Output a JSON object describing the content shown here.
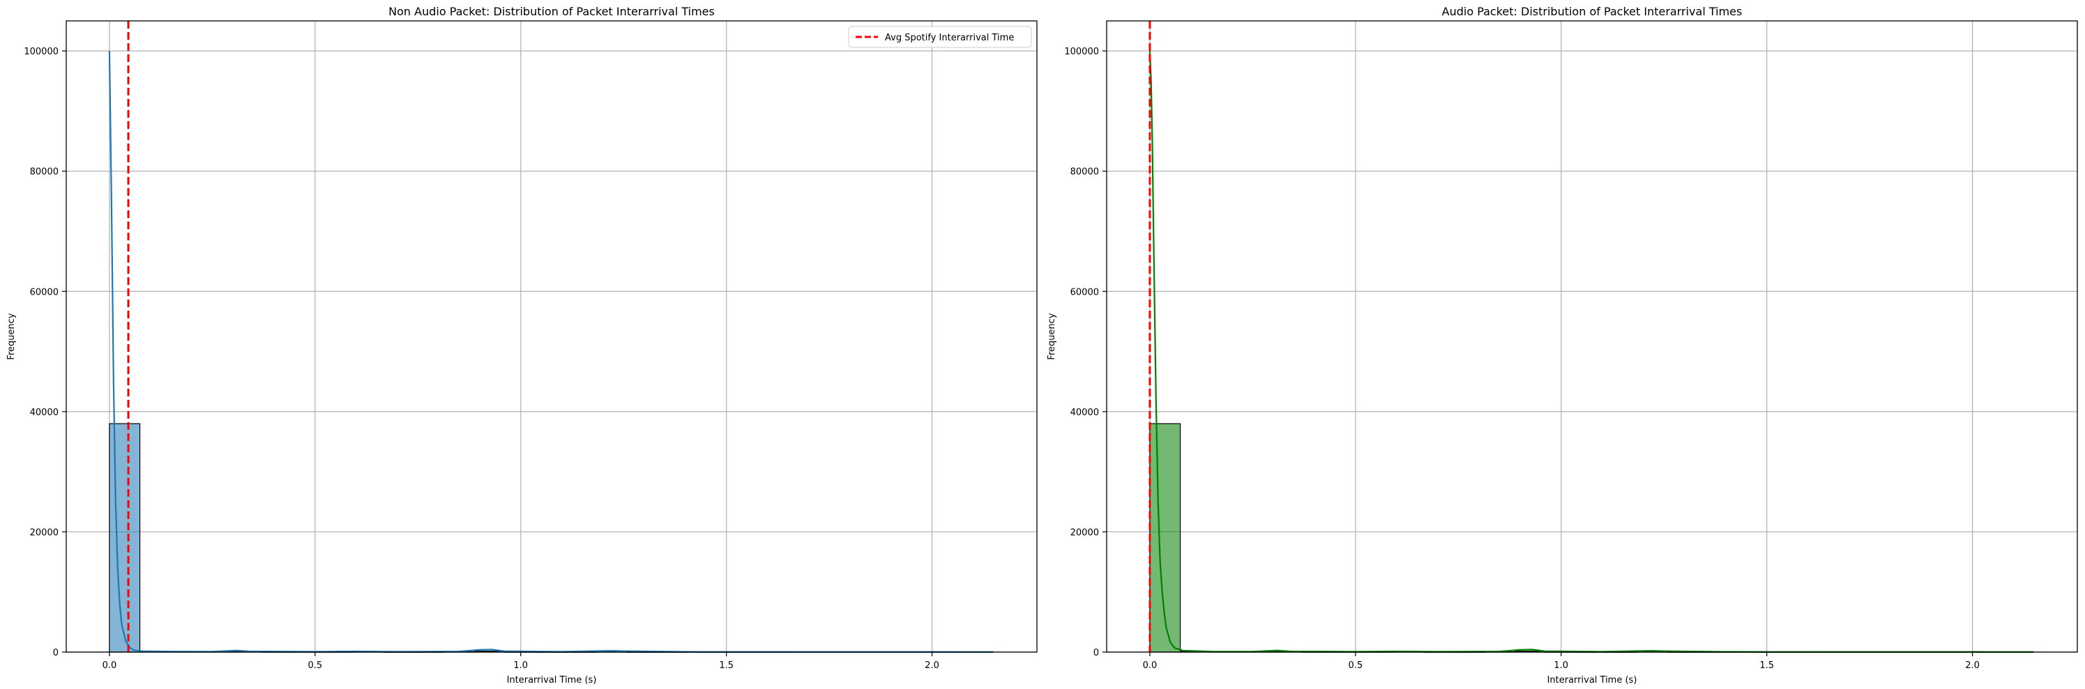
{
  "colors": {
    "grid": "#b0b0b0",
    "axis": "#000000",
    "bar_edge": "#000000",
    "vline": "#ff0000",
    "blue": "#1f77b4",
    "green": "#008000"
  },
  "chart_data": [
    {
      "type": "bar",
      "title": "Non Audio Packet: Distribution of Packet Interarrival Times",
      "xlabel": "Interarrival Time (s)",
      "ylabel": "Frequency",
      "xlim": [
        -0.105,
        2.255
      ],
      "ylim": [
        0,
        105000
      ],
      "xticks": [
        0.0,
        0.5,
        1.0,
        1.5,
        2.0
      ],
      "xtick_labels": [
        "0.0",
        "0.5",
        "1.0",
        "1.5",
        "2.0"
      ],
      "yticks": [
        0,
        20000,
        40000,
        60000,
        80000,
        100000
      ],
      "ytick_labels": [
        "0",
        "20000",
        "40000",
        "60000",
        "80000",
        "100000"
      ],
      "grid": true,
      "bar_color": "#1f77b4",
      "bins": [
        {
          "x0": 0.0,
          "x1": 0.074,
          "value": 38000
        },
        {
          "x0": 0.074,
          "x1": 0.148,
          "value": 130
        },
        {
          "x0": 0.148,
          "x1": 0.222,
          "value": 60
        },
        {
          "x0": 0.222,
          "x1": 0.296,
          "value": 60
        },
        {
          "x0": 0.296,
          "x1": 0.37,
          "value": 120
        },
        {
          "x0": 0.37,
          "x1": 0.444,
          "value": 40
        },
        {
          "x0": 0.444,
          "x1": 0.518,
          "value": 40
        },
        {
          "x0": 0.518,
          "x1": 0.592,
          "value": 40
        },
        {
          "x0": 0.592,
          "x1": 0.666,
          "value": 60
        },
        {
          "x0": 0.666,
          "x1": 0.74,
          "value": 30
        },
        {
          "x0": 0.74,
          "x1": 0.814,
          "value": 30
        },
        {
          "x0": 0.814,
          "x1": 0.888,
          "value": 60
        },
        {
          "x0": 0.888,
          "x1": 0.962,
          "value": 160
        },
        {
          "x0": 0.962,
          "x1": 1.036,
          "value": 40
        },
        {
          "x0": 1.036,
          "x1": 1.11,
          "value": 30
        },
        {
          "x0": 1.11,
          "x1": 1.184,
          "value": 30
        },
        {
          "x0": 1.184,
          "x1": 1.258,
          "value": 60
        },
        {
          "x0": 1.258,
          "x1": 1.332,
          "value": 30
        },
        {
          "x0": 1.332,
          "x1": 1.406,
          "value": 30
        },
        {
          "x0": 1.406,
          "x1": 1.48,
          "value": 30
        },
        {
          "x0": 1.48,
          "x1": 1.554,
          "value": 20
        },
        {
          "x0": 1.554,
          "x1": 1.628,
          "value": 20
        },
        {
          "x0": 1.628,
          "x1": 1.702,
          "value": 20
        },
        {
          "x0": 1.702,
          "x1": 1.776,
          "value": 20
        },
        {
          "x0": 1.776,
          "x1": 1.85,
          "value": 20
        },
        {
          "x0": 1.85,
          "x1": 1.924,
          "value": 20
        },
        {
          "x0": 1.924,
          "x1": 1.998,
          "value": 20
        },
        {
          "x0": 1.998,
          "x1": 2.072,
          "value": 20
        },
        {
          "x0": 2.072,
          "x1": 2.146,
          "value": 20
        }
      ],
      "kde": {
        "color": "#1f77b4",
        "points": [
          [
            0.0,
            100000
          ],
          [
            0.005,
            75000
          ],
          [
            0.01,
            45000
          ],
          [
            0.015,
            25000
          ],
          [
            0.02,
            14000
          ],
          [
            0.025,
            8000
          ],
          [
            0.03,
            4500
          ],
          [
            0.04,
            1800
          ],
          [
            0.05,
            700
          ],
          [
            0.06,
            300
          ],
          [
            0.08,
            150
          ],
          [
            0.15,
            90
          ],
          [
            0.25,
            70
          ],
          [
            0.29,
            200
          ],
          [
            0.31,
            260
          ],
          [
            0.34,
            120
          ],
          [
            0.5,
            60
          ],
          [
            0.6,
            120
          ],
          [
            0.7,
            60
          ],
          [
            0.85,
            100
          ],
          [
            0.9,
            380
          ],
          [
            0.93,
            420
          ],
          [
            0.96,
            150
          ],
          [
            1.1,
            60
          ],
          [
            1.22,
            220
          ],
          [
            1.25,
            160
          ],
          [
            1.4,
            40
          ],
          [
            1.7,
            30
          ],
          [
            2.0,
            25
          ],
          [
            2.15,
            20
          ]
        ]
      },
      "vline": {
        "x": 0.046,
        "label": "Avg Spotify Interarrival Time"
      },
      "legend": {
        "position": "upper right"
      }
    },
    {
      "type": "bar",
      "title": "Audio Packet: Distribution of Packet Interarrival Times",
      "xlabel": "Interarrival Time (s)",
      "ylabel": "Frequency",
      "xlim": [
        -0.105,
        2.255
      ],
      "ylim": [
        0,
        105000
      ],
      "xticks": [
        0.0,
        0.5,
        1.0,
        1.5,
        2.0
      ],
      "xtick_labels": [
        "0.0",
        "0.5",
        "1.0",
        "1.5",
        "2.0"
      ],
      "yticks": [
        0,
        20000,
        40000,
        60000,
        80000,
        100000
      ],
      "ytick_labels": [
        "0",
        "20000",
        "40000",
        "60000",
        "80000",
        "100000"
      ],
      "grid": true,
      "bar_color": "#008000",
      "bins": [
        {
          "x0": 0.0,
          "x1": 0.074,
          "value": 38000
        },
        {
          "x0": 0.074,
          "x1": 0.148,
          "value": 130
        },
        {
          "x0": 0.148,
          "x1": 0.222,
          "value": 60
        },
        {
          "x0": 0.222,
          "x1": 0.296,
          "value": 60
        },
        {
          "x0": 0.296,
          "x1": 0.37,
          "value": 120
        },
        {
          "x0": 0.37,
          "x1": 0.444,
          "value": 40
        },
        {
          "x0": 0.444,
          "x1": 0.518,
          "value": 40
        },
        {
          "x0": 0.518,
          "x1": 0.592,
          "value": 40
        },
        {
          "x0": 0.592,
          "x1": 0.666,
          "value": 60
        },
        {
          "x0": 0.666,
          "x1": 0.74,
          "value": 30
        },
        {
          "x0": 0.74,
          "x1": 0.814,
          "value": 30
        },
        {
          "x0": 0.814,
          "x1": 0.888,
          "value": 60
        },
        {
          "x0": 0.888,
          "x1": 0.962,
          "value": 160
        },
        {
          "x0": 0.962,
          "x1": 1.036,
          "value": 40
        },
        {
          "x0": 1.036,
          "x1": 1.11,
          "value": 30
        },
        {
          "x0": 1.11,
          "x1": 1.184,
          "value": 30
        },
        {
          "x0": 1.184,
          "x1": 1.258,
          "value": 60
        },
        {
          "x0": 1.258,
          "x1": 1.332,
          "value": 30
        },
        {
          "x0": 1.332,
          "x1": 1.406,
          "value": 30
        },
        {
          "x0": 1.406,
          "x1": 1.48,
          "value": 30
        },
        {
          "x0": 1.48,
          "x1": 1.554,
          "value": 20
        },
        {
          "x0": 1.554,
          "x1": 1.628,
          "value": 20
        },
        {
          "x0": 1.628,
          "x1": 1.702,
          "value": 20
        },
        {
          "x0": 1.702,
          "x1": 1.776,
          "value": 20
        },
        {
          "x0": 1.776,
          "x1": 1.85,
          "value": 20
        },
        {
          "x0": 1.85,
          "x1": 1.924,
          "value": 20
        },
        {
          "x0": 1.924,
          "x1": 1.998,
          "value": 20
        },
        {
          "x0": 1.998,
          "x1": 2.072,
          "value": 20
        },
        {
          "x0": 2.072,
          "x1": 2.146,
          "value": 20
        }
      ],
      "kde": {
        "color": "#008000",
        "points": [
          [
            0.0,
            100000
          ],
          [
            0.003,
            95000
          ],
          [
            0.006,
            85000
          ],
          [
            0.01,
            65000
          ],
          [
            0.015,
            42000
          ],
          [
            0.02,
            25000
          ],
          [
            0.025,
            15000
          ],
          [
            0.03,
            10000
          ],
          [
            0.035,
            6500
          ],
          [
            0.04,
            4000
          ],
          [
            0.05,
            1600
          ],
          [
            0.06,
            700
          ],
          [
            0.08,
            250
          ],
          [
            0.15,
            90
          ],
          [
            0.25,
            70
          ],
          [
            0.29,
            200
          ],
          [
            0.31,
            260
          ],
          [
            0.34,
            120
          ],
          [
            0.5,
            60
          ],
          [
            0.6,
            120
          ],
          [
            0.7,
            60
          ],
          [
            0.85,
            100
          ],
          [
            0.9,
            380
          ],
          [
            0.93,
            420
          ],
          [
            0.96,
            150
          ],
          [
            1.1,
            60
          ],
          [
            1.22,
            220
          ],
          [
            1.25,
            160
          ],
          [
            1.4,
            40
          ],
          [
            1.7,
            30
          ],
          [
            2.0,
            25
          ],
          [
            2.15,
            20
          ]
        ]
      },
      "vline": {
        "x": 0.0,
        "label": "Avg Spotify Interarrival Time"
      },
      "legend": null
    }
  ]
}
